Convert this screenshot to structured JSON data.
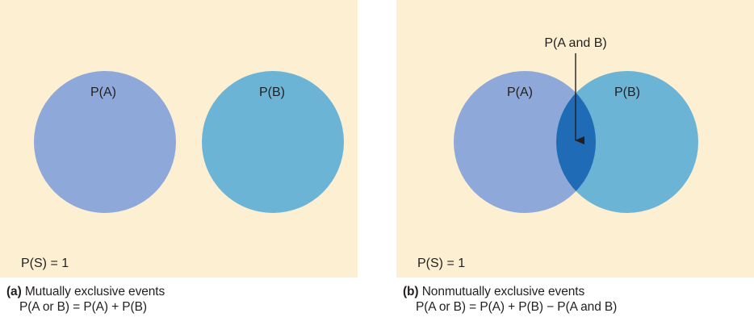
{
  "colors": {
    "background": "#fdf0d2",
    "circle_a": "#8ea9d9",
    "circle_b": "#6cb4d5",
    "overlap": "#1f6bb5",
    "arrow": "#231f20"
  },
  "panel_a": {
    "label_a": "P(A)",
    "label_b": "P(B)",
    "sample_space": "P(S) = 1",
    "caption_tag": "(a)",
    "caption_title": "Mutually exclusive events",
    "caption_formula": "P(A or B) = P(A) + P(B)"
  },
  "panel_b": {
    "label_a": "P(A)",
    "label_b": "P(B)",
    "label_overlap": "P(A and B)",
    "sample_space": "P(S) = 1",
    "caption_tag": "(b)",
    "caption_title": "Nonmutually exclusive events",
    "caption_formula": "P(A or B) = P(A) + P(B) − P(A and B)"
  }
}
